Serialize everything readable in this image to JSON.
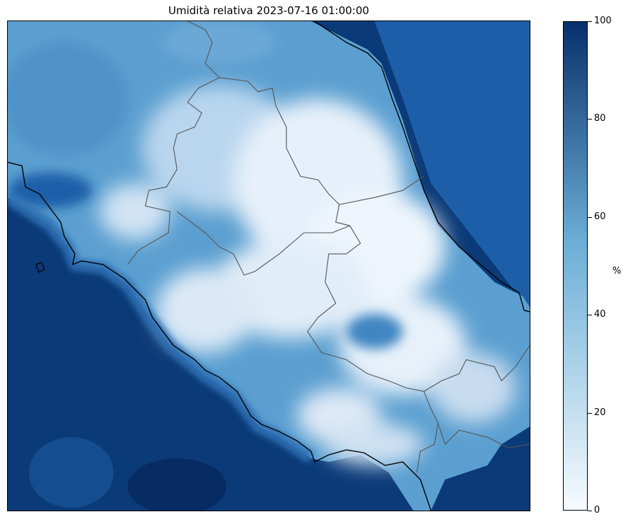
{
  "title": "Umidità relativa 2023-07-16 01:00:00",
  "colorbar": {
    "unit": "%",
    "min": 0,
    "max": 100,
    "ticks": [
      "0",
      "20",
      "40",
      "60",
      "80",
      "100"
    ],
    "colormap": "Blues",
    "color_low": "#f7fbff",
    "color_mid": "#6baed6",
    "color_high": "#08306b"
  },
  "map": {
    "variable": "relative humidity",
    "sea_level": 95,
    "coastline_color": "#000000",
    "region_border_color": "#555555"
  }
}
